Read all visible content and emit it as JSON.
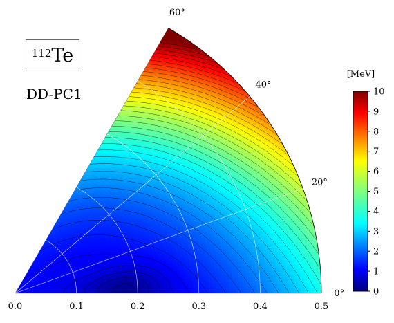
{
  "nucleus": {
    "mass_number": "112",
    "symbol": "Te"
  },
  "functional": "DD-PC1",
  "chart_data": {
    "type": "heatmap",
    "subtype": "polar potential energy surface (beta-gamma plane)",
    "title": "",
    "xlabel": "",
    "ylabel": "",
    "beta_ticks": [
      "0.0",
      "0.1",
      "0.2",
      "0.3",
      "0.4",
      "0.5"
    ],
    "beta_range": [
      0,
      0.5
    ],
    "gamma_ticks": [
      "0°",
      "20°",
      "40°",
      "60°"
    ],
    "gamma_range_deg": [
      0,
      60
    ],
    "colorbar": {
      "unit": "[MeV]",
      "ticks": [
        "0",
        "1",
        "2",
        "3",
        "4",
        "5",
        "6",
        "7",
        "8",
        "9",
        "10"
      ],
      "range": [
        0,
        10
      ],
      "colormap": "jet"
    },
    "grid": true,
    "contour_spacing_MeV": 0.25,
    "minimum": {
      "beta": 0.18,
      "gamma_deg": 3,
      "energy_MeV": 0
    },
    "energy_samples": [
      {
        "beta": 0.0,
        "gamma_deg": 0,
        "energy_MeV": 2.0
      },
      {
        "beta": 0.1,
        "gamma_deg": 0,
        "energy_MeV": 1.0
      },
      {
        "beta": 0.2,
        "gamma_deg": 0,
        "energy_MeV": 0.1
      },
      {
        "beta": 0.3,
        "gamma_deg": 0,
        "energy_MeV": 0.9
      },
      {
        "beta": 0.4,
        "gamma_deg": 0,
        "energy_MeV": 2.8
      },
      {
        "beta": 0.5,
        "gamma_deg": 0,
        "energy_MeV": 5.2
      },
      {
        "beta": 0.3,
        "gamma_deg": 30,
        "energy_MeV": 2.6
      },
      {
        "beta": 0.5,
        "gamma_deg": 20,
        "energy_MeV": 7.3
      },
      {
        "beta": 0.5,
        "gamma_deg": 40,
        "energy_MeV": 9.0
      },
      {
        "beta": 0.5,
        "gamma_deg": 60,
        "energy_MeV": 10.0
      },
      {
        "beta": 0.3,
        "gamma_deg": 60,
        "energy_MeV": 5.0
      }
    ]
  }
}
